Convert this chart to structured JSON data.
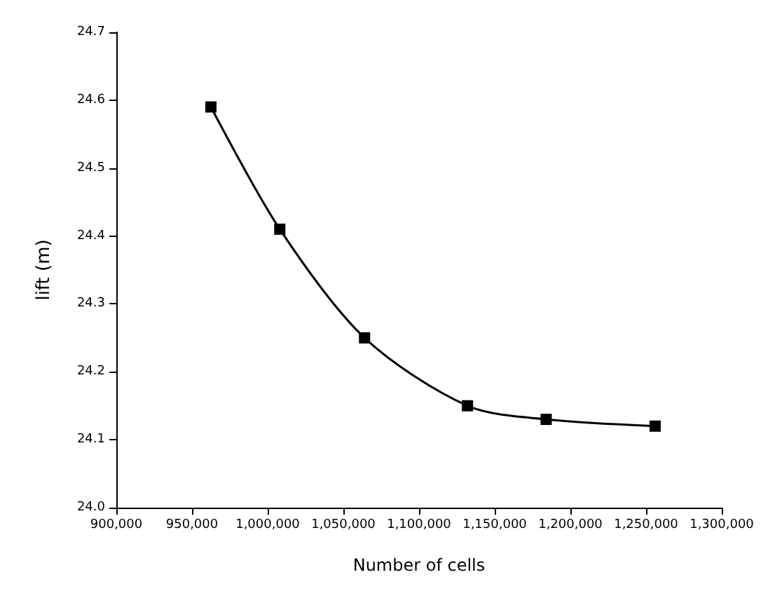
{
  "chart_data": {
    "type": "line",
    "xlabel": "Number of cells",
    "ylabel": "lift (m)",
    "x": [
      962500,
      1008000,
      1064000,
      1132000,
      1184000,
      1256000
    ],
    "series": [
      {
        "color": "#000000",
        "values": [
          24.59,
          24.41,
          24.25,
          24.15,
          24.13,
          24.12
        ]
      }
    ],
    "xlim": [
      900000,
      1300000
    ],
    "xticks": [
      {
        "value": 900000,
        "label": "900,000"
      },
      {
        "value": 950000,
        "label": "950,000"
      },
      {
        "value": 1000000,
        "label": "1,000,000"
      },
      {
        "value": 1050000,
        "label": "1,050,000"
      },
      {
        "value": 1100000,
        "label": "1,100,000"
      },
      {
        "value": 1150000,
        "label": "1,150,000"
      },
      {
        "value": 1200000,
        "label": "1,200,000"
      },
      {
        "value": 1250000,
        "label": "1,250,000"
      },
      {
        "value": 1300000,
        "label": "1,300,000"
      }
    ],
    "ylim": [
      24.0,
      24.7
    ],
    "yticks": [
      {
        "value": 24.0,
        "label": "24.0"
      },
      24.1,
      24.2,
      24.3,
      24.4,
      24.5,
      24.6,
      24.7
    ],
    "grid": false,
    "marker": "square",
    "line_style": "solid"
  }
}
